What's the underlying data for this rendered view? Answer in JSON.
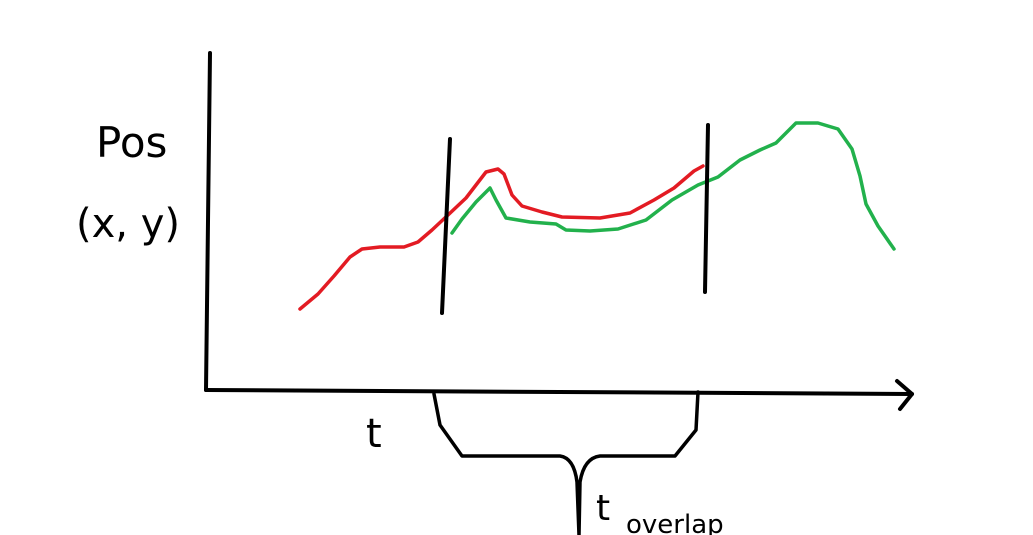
{
  "labels": {
    "ylabel_line1": "Pos",
    "ylabel_line2": "(x, y)",
    "xlabel": "t",
    "overlap_base": "t",
    "overlap_sub": "overlap"
  },
  "colors": {
    "axis": "#000000",
    "trajectory_a": "#e31b23",
    "trajectory_b": "#22b14c",
    "markers": "#000000"
  },
  "chart_data": {
    "type": "line",
    "xlabel": "t",
    "ylabel": "Pos (x, y)",
    "series": [
      {
        "color": "#e31b23"
      },
      {
        "color": "#22b14c"
      }
    ],
    "overlap_label": "t overlap",
    "grid": false,
    "legend": "none"
  }
}
